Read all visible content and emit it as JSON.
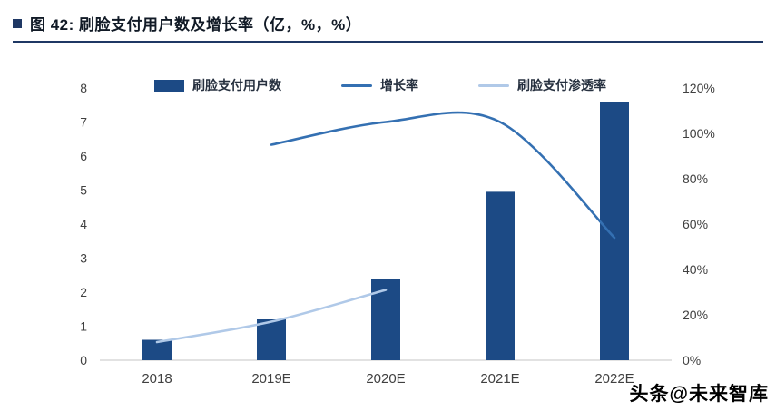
{
  "header": {
    "title": "图 42:  刷脸支付用户数及增长率（亿，%，%）"
  },
  "watermark": {
    "text": "头条@未来智库"
  },
  "chart_data": {
    "type": "bar+line",
    "title": "刷脸支付用户数及增长率（亿，%，%）",
    "categories": [
      "2018",
      "2019E",
      "2020E",
      "2021E",
      "2022E"
    ],
    "series": [
      {
        "name": "刷脸支付用户数",
        "type": "bar",
        "axis": "left",
        "color": "#1c4a85",
        "values": [
          0.6,
          1.2,
          2.4,
          4.95,
          7.6
        ]
      },
      {
        "name": "增长率",
        "type": "line",
        "axis": "right",
        "color": "#3470b2",
        "values": [
          null,
          95,
          105,
          105,
          54
        ]
      },
      {
        "name": "刷脸支付渗透率",
        "type": "line",
        "axis": "right",
        "color": "#b0c9e8",
        "values": [
          8,
          17,
          31,
          null,
          null
        ]
      }
    ],
    "left_axis": {
      "min": 0,
      "max": 8,
      "step": 1,
      "ticks": [
        "0",
        "1",
        "2",
        "3",
        "4",
        "5",
        "6",
        "7",
        "8"
      ]
    },
    "right_axis": {
      "min": 0,
      "max": 120,
      "step": 20,
      "suffix": "%",
      "ticks": [
        "0%",
        "20%",
        "40%",
        "60%",
        "80%",
        "100%",
        "120%"
      ]
    },
    "legend_position": "top",
    "grid": false
  }
}
